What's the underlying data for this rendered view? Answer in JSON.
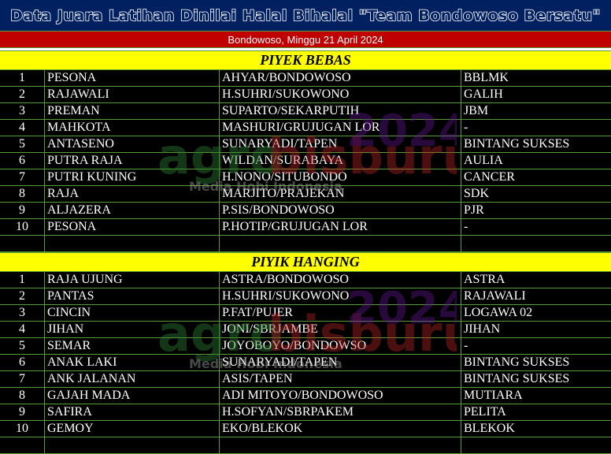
{
  "title": "Data Juara Latihan Dinilai Halal Bihalal \"Team Bondowoso Bersatu\"",
  "subtitle": "Bondowoso, Minggu 21 April 2024",
  "watermark": {
    "logo": "agrobisburung 2024 .com",
    "tagline": "Media Hobi Indonesia"
  },
  "colors": {
    "title_bg": "#002060",
    "subtitle_bg": "#c00000",
    "section_bg": "#ffff00",
    "grid": "#5a9a3a"
  },
  "sections": [
    {
      "name": "PIYEK BEBAS",
      "rows": [
        [
          "1",
          "PESONA",
          "AHYAR/BONDOWOSO",
          "BBLMK"
        ],
        [
          "2",
          "RAJAWALI",
          "H.SUHRI/SUKOWONO",
          "GALIH"
        ],
        [
          "3",
          "PREMAN",
          "SUPARTO/SEKARPUTIH",
          "JBM"
        ],
        [
          "4",
          "MAHKOTA",
          "MASHURI/GRUJUGAN LOR",
          "-"
        ],
        [
          "5",
          "ANTASENO",
          "SUNARYADI/TAPEN",
          "BINTANG SUKSES"
        ],
        [
          "6",
          "PUTRA RAJA",
          "WILDAN/SURABAYA",
          "AULIA"
        ],
        [
          "7",
          "PUTRI KUNING",
          "H.NONO/SITUBONDO",
          "CANCER"
        ],
        [
          "8",
          "RAJA",
          "MARJITO/PRAJEKAN",
          "SDK"
        ],
        [
          "9",
          "ALJAZERA",
          "P.SIS/BONDOWOSO",
          "PJR"
        ],
        [
          "10",
          "PESONA",
          "P.HOTIP/GRUJUGAN LOR",
          "-"
        ]
      ]
    },
    {
      "name": "PIYIK HANGING",
      "rows": [
        [
          "1",
          "RAJA UJUNG",
          "ASTRA/BONDOWOSO",
          "ASTRA"
        ],
        [
          "2",
          "PANTAS",
          "H.SUHRI/SUKOWONO",
          "RAJAWALI"
        ],
        [
          "3",
          "CINCIN",
          "P.FAT/PUJER",
          "LOGAWA 02"
        ],
        [
          "4",
          "JIHAN",
          "JONI/SBRJAMBE",
          "JIHAN"
        ],
        [
          "5",
          "SEMAR",
          "JOYOBOYO/BONDOWSO",
          "-"
        ],
        [
          "6",
          "ANAK LAKI",
          "SUNARYADI/TAPEN",
          "BINTANG SUKSES"
        ],
        [
          "7",
          "ANK JALANAN",
          "ASIS/TAPEN",
          "BINTANG SUKSES"
        ],
        [
          "8",
          "GAJAH MADA",
          "ADI MITOYO/BONDOWOSO",
          "MUTIARA"
        ],
        [
          "9",
          "SAFIRA",
          "H.SOFYAN/SBRPAKEM",
          "PELITA"
        ],
        [
          "10",
          "GEMOY",
          "EKO/BLEKOK",
          "BLEKOK"
        ]
      ]
    }
  ]
}
